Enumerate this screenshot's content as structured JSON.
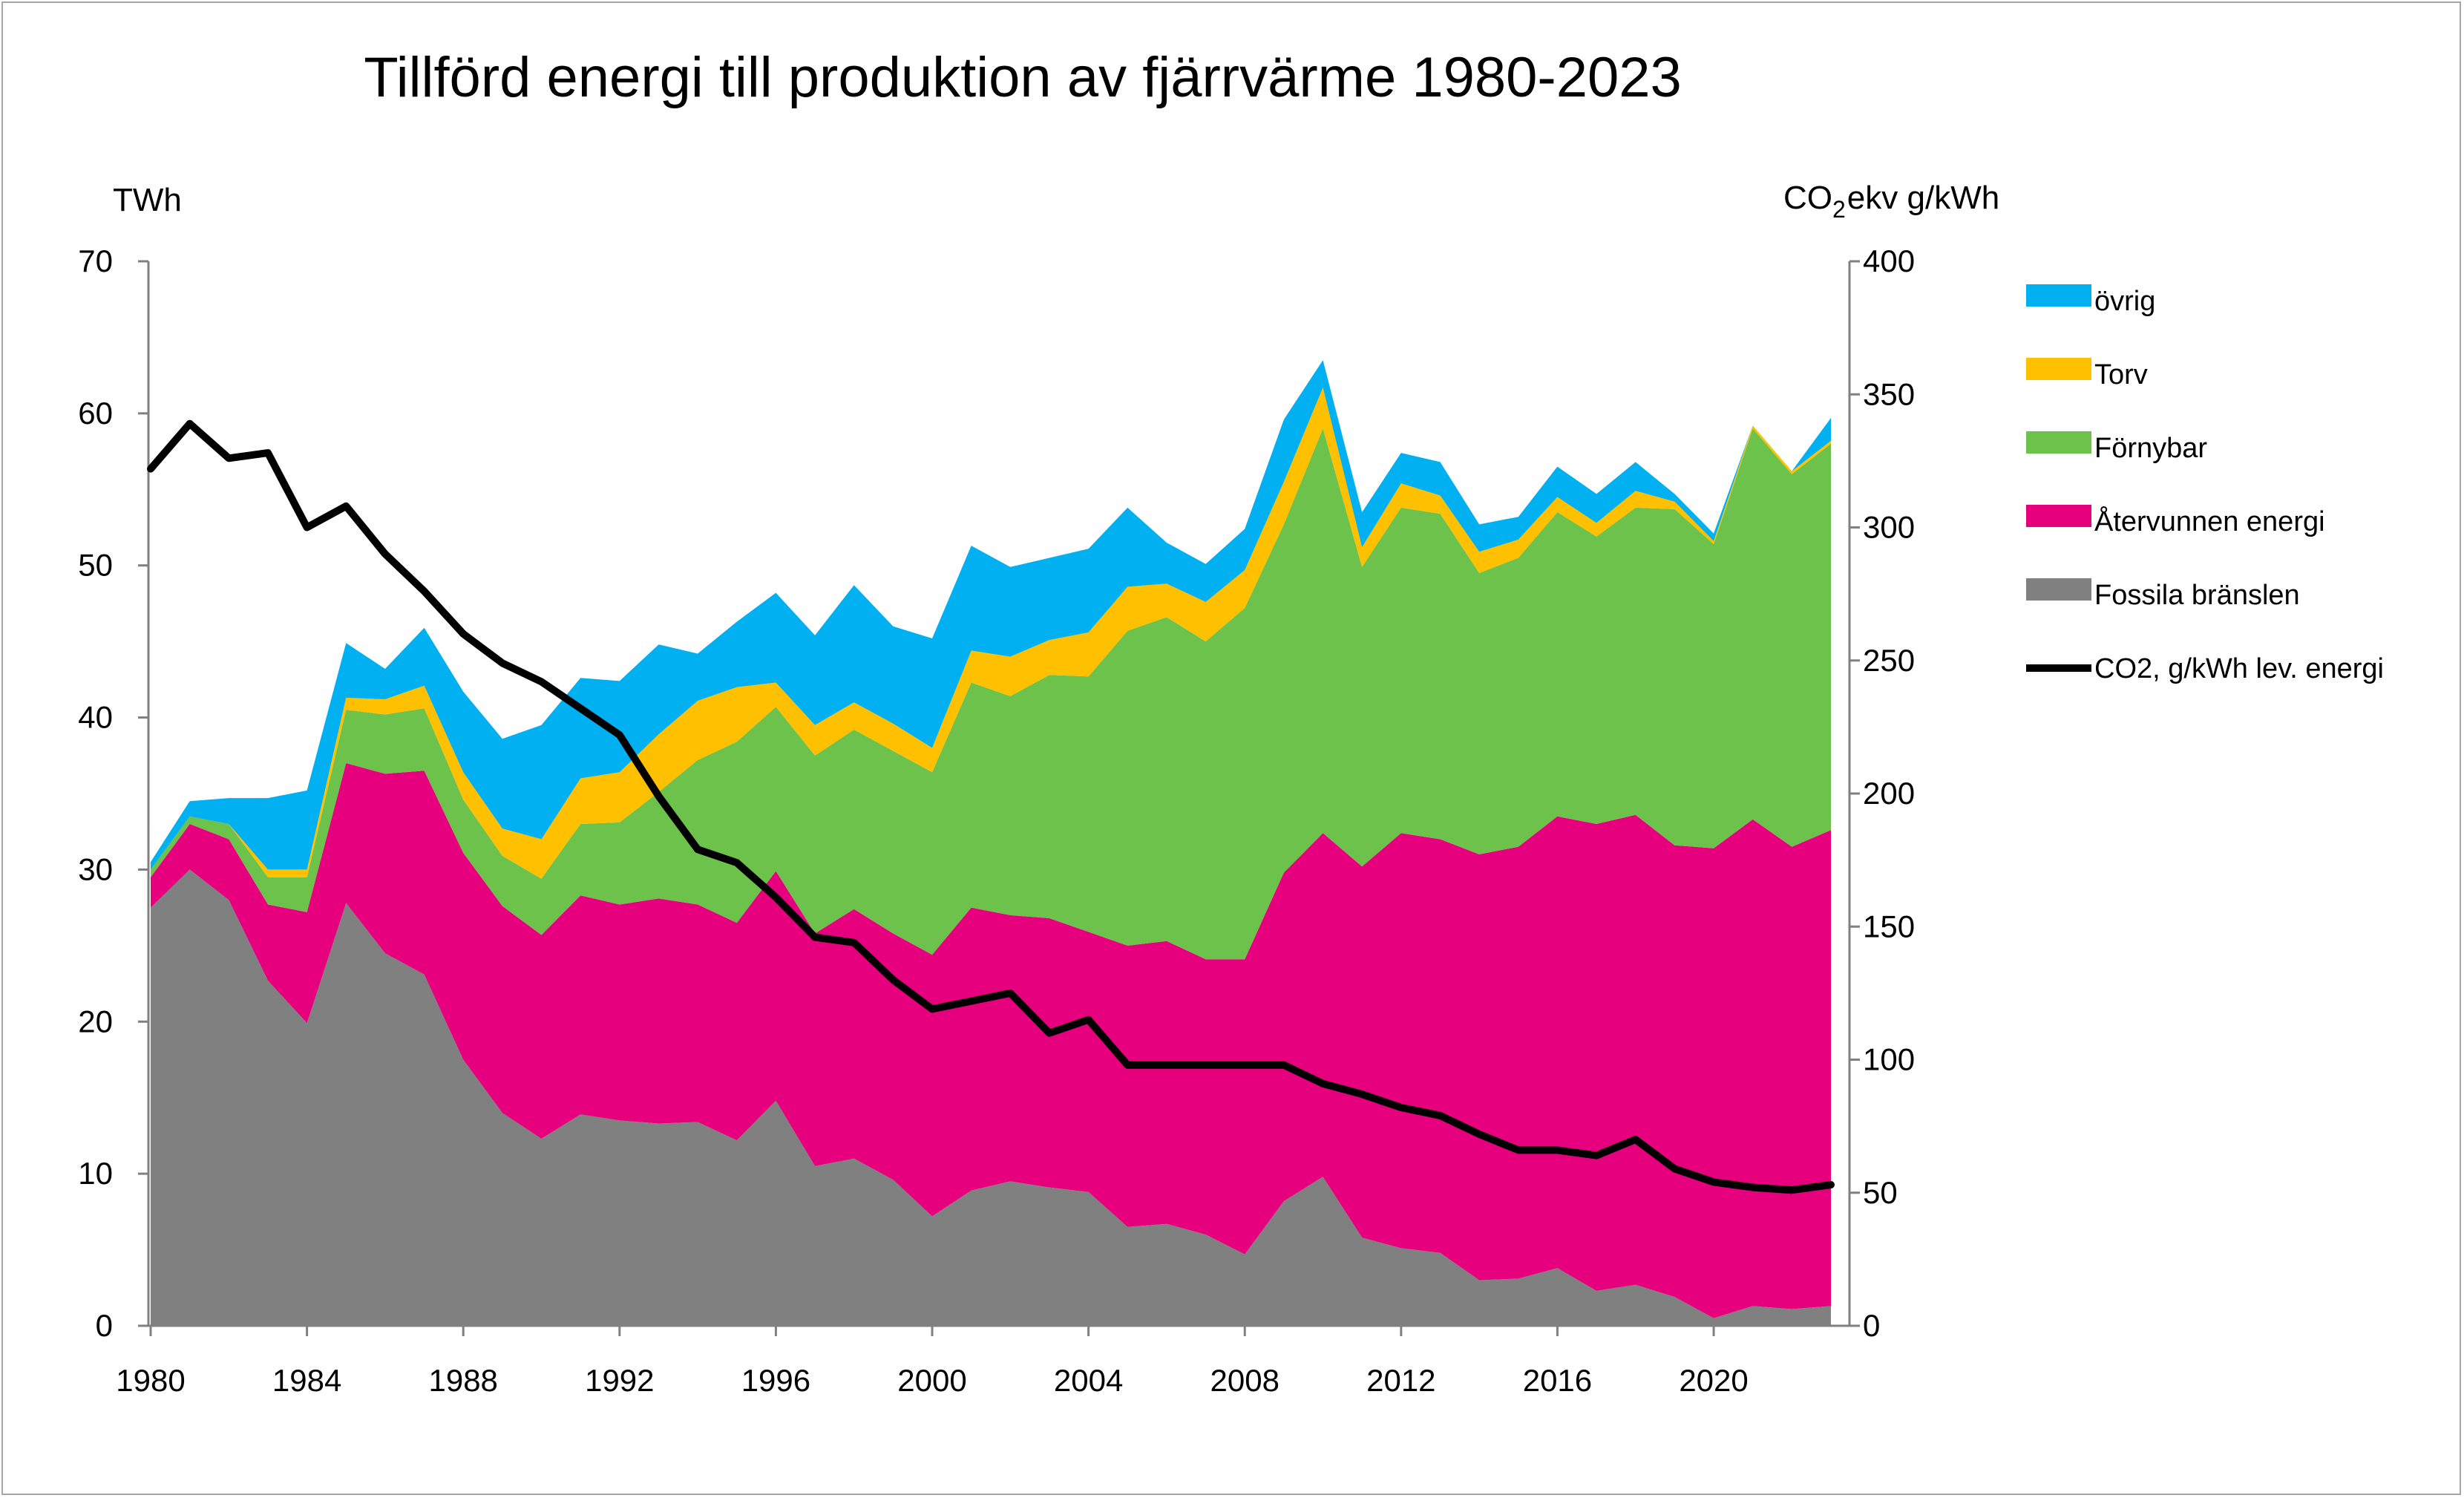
{
  "chart_data": {
    "type": "area",
    "title": "Tillförd energi till produktion av fjärrvärme 1980-2023",
    "left_axis": {
      "label": "TWh",
      "min": 0,
      "max": 70,
      "ticks": [
        "0",
        "10",
        "20",
        "30",
        "40",
        "50",
        "60",
        "70"
      ]
    },
    "right_axis": {
      "label_main": "CO",
      "label_sub": "2",
      "label_rest": "ekv  g/kWh",
      "min": 0,
      "max": 400,
      "ticks": [
        "0",
        "50",
        "100",
        "150",
        "200",
        "250",
        "300",
        "350",
        "400"
      ]
    },
    "x_tick_labels": [
      "1980",
      "1984",
      "1988",
      "1992",
      "1996",
      "2000",
      "2004",
      "2008",
      "2012",
      "2016",
      "2020"
    ],
    "years": [
      1980,
      1981,
      1982,
      1983,
      1984,
      1985,
      1986,
      1987,
      1988,
      1989,
      1990,
      1991,
      1992,
      1993,
      1994,
      1995,
      1996,
      1997,
      1998,
      1999,
      2000,
      2001,
      2002,
      2003,
      2004,
      2005,
      2006,
      2007,
      2008,
      2009,
      2010,
      2011,
      2012,
      2013,
      2014,
      2015,
      2016,
      2017,
      2018,
      2019,
      2020,
      2021,
      2022,
      2023
    ],
    "series": [
      {
        "name": "Fossila bränslen",
        "color": "#808080",
        "values": [
          27.5,
          30.0,
          28.0,
          22.7,
          19.9,
          27.8,
          24.5,
          23.1,
          17.5,
          14.0,
          12.3,
          13.9,
          13.5,
          13.3,
          13.4,
          12.2,
          14.8,
          10.5,
          11.0,
          9.6,
          7.2,
          8.9,
          9.5,
          9.1,
          8.8,
          6.5,
          6.7,
          6.0,
          4.7,
          8.2,
          9.8,
          5.8,
          5.1,
          4.8,
          3.0,
          3.1,
          3.8,
          2.3,
          2.7,
          1.9,
          0.5,
          1.3,
          1.1,
          1.3
        ]
      },
      {
        "name": "Återvunnen energi",
        "color": "#E6007E",
        "values": [
          2.0,
          3.0,
          4.0,
          5.0,
          7.3,
          9.2,
          11.8,
          13.4,
          13.6,
          13.6,
          13.4,
          14.4,
          14.2,
          14.8,
          14.3,
          14.3,
          15.1,
          15.3,
          16.4,
          16.2,
          17.2,
          18.6,
          17.5,
          17.7,
          17.1,
          18.5,
          18.6,
          18.1,
          19.4,
          21.6,
          22.6,
          24.4,
          27.3,
          27.2,
          28.0,
          28.4,
          29.7,
          30.7,
          30.9,
          29.7,
          30.9,
          32.0,
          30.4,
          31.3
        ]
      },
      {
        "name": "Förnybar",
        "color": "#6CC24A",
        "values": [
          0.5,
          0.5,
          1.0,
          1.8,
          2.3,
          3.5,
          3.9,
          4.1,
          3.5,
          3.3,
          3.7,
          4.7,
          5.4,
          7.0,
          9.5,
          11.9,
          10.8,
          11.7,
          11.8,
          12.0,
          12.0,
          14.8,
          14.4,
          16.0,
          16.8,
          20.7,
          21.3,
          20.9,
          23.1,
          22.9,
          26.6,
          19.7,
          21.4,
          21.4,
          18.5,
          19.0,
          20.0,
          18.9,
          20.2,
          22.1,
          20.0,
          25.7,
          24.5,
          25.4
        ]
      },
      {
        "name": "Torv",
        "color": "#FFC000",
        "values": [
          0.0,
          0.0,
          0.0,
          0.5,
          0.5,
          0.8,
          1.0,
          1.5,
          1.8,
          1.8,
          2.6,
          3.0,
          3.3,
          3.8,
          3.9,
          3.6,
          1.6,
          2.0,
          1.8,
          1.8,
          1.6,
          2.1,
          2.6,
          2.3,
          2.9,
          2.9,
          2.2,
          2.6,
          2.5,
          2.8,
          2.7,
          1.3,
          1.6,
          1.2,
          1.4,
          1.2,
          1.0,
          0.9,
          1.1,
          0.5,
          0.2,
          0.2,
          0.2,
          0.2
        ]
      },
      {
        "name": "övrig",
        "color": "#00B0F0",
        "values": [
          0.5,
          1.0,
          1.7,
          4.7,
          5.2,
          3.6,
          2.0,
          3.8,
          5.3,
          5.9,
          7.5,
          6.6,
          6.0,
          5.9,
          3.1,
          4.3,
          5.9,
          5.9,
          7.7,
          6.4,
          7.2,
          6.9,
          5.9,
          5.4,
          5.5,
          5.2,
          2.7,
          2.5,
          2.7,
          4.1,
          1.8,
          2.3,
          2.0,
          2.2,
          1.8,
          1.5,
          2.0,
          1.9,
          1.9,
          0.5,
          0.5,
          0.0,
          0.0,
          1.5
        ]
      }
    ],
    "line_series": {
      "name": "CO2, g/kWh lev. energi",
      "color": "#000000",
      "axis": "right",
      "values": [
        322,
        339,
        326,
        328,
        300,
        308,
        290,
        276,
        260,
        249,
        242,
        232,
        222,
        199,
        179,
        174,
        161,
        146,
        144,
        130,
        119,
        122,
        125,
        110,
        115,
        98,
        98,
        98,
        98,
        98,
        91,
        87,
        82,
        79,
        72,
        66,
        66,
        64,
        70,
        59,
        54,
        52,
        51,
        53
      ]
    },
    "legend": [
      {
        "label": "övrig",
        "color": "#00B0F0",
        "kind": "patch"
      },
      {
        "label": "Torv",
        "color": "#FFC000",
        "kind": "patch"
      },
      {
        "label": "Förnybar",
        "color": "#6CC24A",
        "kind": "patch"
      },
      {
        "label": "Återvunnen energi",
        "color": "#E6007E",
        "kind": "patch"
      },
      {
        "label": "Fossila bränslen",
        "color": "#808080",
        "kind": "patch"
      },
      {
        "label": "CO2, g/kWh lev. energi",
        "color": "#000000",
        "kind": "line"
      }
    ]
  }
}
